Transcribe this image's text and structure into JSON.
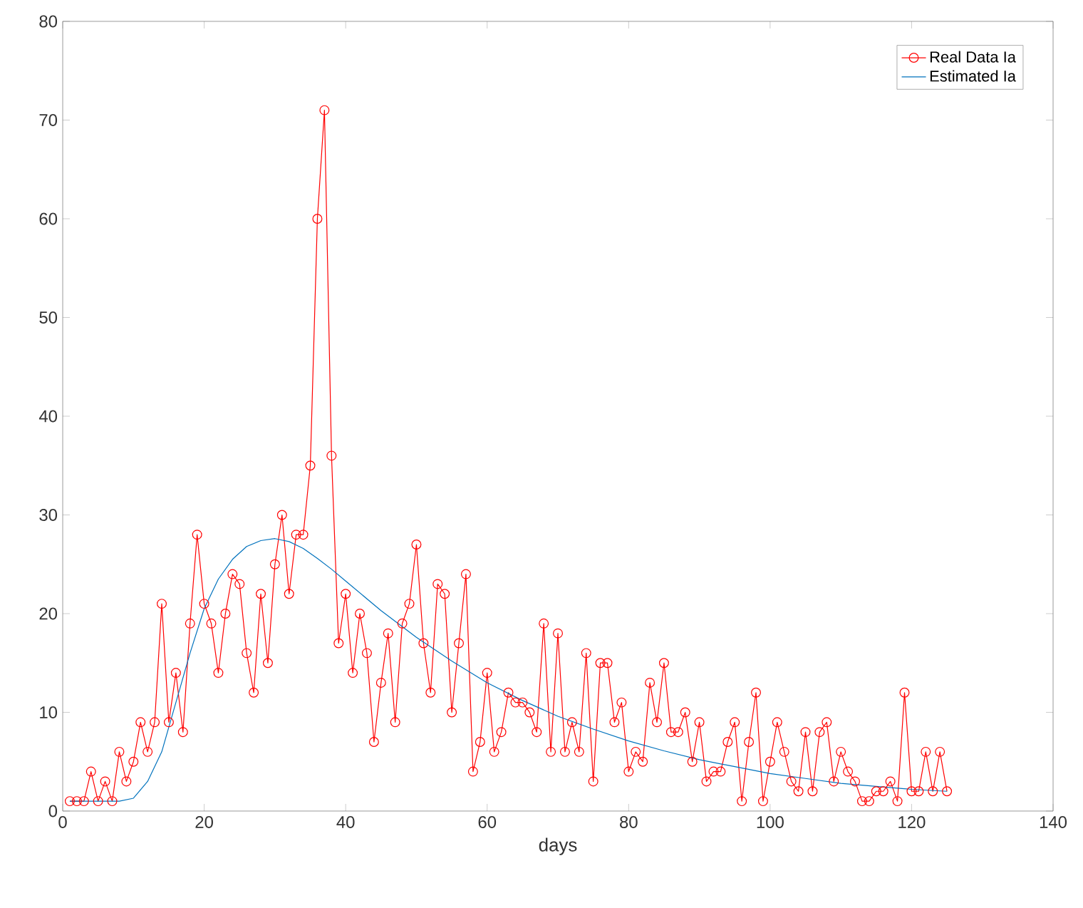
{
  "chart_data": {
    "type": "line",
    "xlabel": "days",
    "xlim": [
      0,
      140
    ],
    "ylim": [
      0,
      80
    ],
    "xticks": [
      0,
      20,
      40,
      60,
      80,
      100,
      120,
      140
    ],
    "yticks": [
      0,
      10,
      20,
      30,
      40,
      50,
      60,
      70,
      80
    ],
    "grid": false,
    "legend": "top right",
    "series": [
      {
        "name": "Real Data Ia",
        "color": "#ff0000",
        "marker": "circle",
        "x": [
          1,
          2,
          3,
          4,
          5,
          6,
          7,
          8,
          9,
          10,
          11,
          12,
          13,
          14,
          15,
          16,
          17,
          18,
          19,
          20,
          21,
          22,
          23,
          24,
          25,
          26,
          27,
          28,
          29,
          30,
          31,
          32,
          33,
          34,
          35,
          36,
          37,
          38,
          39,
          40,
          41,
          42,
          43,
          44,
          45,
          46,
          47,
          48,
          49,
          50,
          51,
          52,
          53,
          54,
          55,
          56,
          57,
          58,
          59,
          60,
          61,
          62,
          63,
          64,
          65,
          66,
          67,
          68,
          69,
          70,
          71,
          72,
          73,
          74,
          75,
          76,
          77,
          78,
          79,
          80,
          81,
          82,
          83,
          84,
          85,
          86,
          87,
          88,
          89,
          90,
          91,
          92,
          93,
          94,
          95,
          96,
          97,
          98,
          99,
          100,
          101,
          102,
          103,
          104,
          105,
          106,
          107,
          108,
          109,
          110,
          111,
          112,
          113,
          114,
          115,
          116,
          117,
          118,
          119,
          120,
          121,
          122,
          123,
          124,
          125
        ],
        "values": [
          1,
          1,
          1,
          4,
          1,
          3,
          1,
          6,
          3,
          5,
          9,
          6,
          9,
          21,
          9,
          14,
          8,
          19,
          28,
          21,
          19,
          14,
          20,
          24,
          23,
          16,
          12,
          22,
          15,
          25,
          30,
          22,
          28,
          28,
          35,
          60,
          71,
          36,
          17,
          22,
          14,
          20,
          16,
          7,
          13,
          18,
          9,
          19,
          21,
          27,
          17,
          12,
          23,
          22,
          10,
          17,
          24,
          4,
          7,
          14,
          6,
          8,
          12,
          11,
          11,
          10,
          8,
          19,
          6,
          18,
          6,
          9,
          6,
          16,
          3,
          15,
          15,
          9,
          11,
          4,
          6,
          5,
          13,
          9,
          15,
          8,
          8,
          10,
          5,
          9,
          3,
          4,
          4,
          7,
          9,
          1,
          7,
          12,
          1,
          5,
          9,
          6,
          3,
          2,
          8,
          2,
          8,
          9,
          3,
          6,
          4,
          3,
          1,
          1,
          2,
          2,
          3,
          1,
          12,
          2,
          2,
          6,
          2,
          6,
          2
        ]
      },
      {
        "name": "Estimated Ia",
        "color": "#0072bd",
        "marker": "none",
        "x": [
          1,
          5,
          8,
          10,
          12,
          14,
          16,
          18,
          20,
          22,
          24,
          26,
          28,
          30,
          32,
          34,
          36,
          38,
          40,
          45,
          50,
          55,
          60,
          65,
          70,
          75,
          80,
          85,
          90,
          95,
          100,
          105,
          110,
          115,
          120,
          125
        ],
        "values": [
          1,
          1,
          1,
          1.3,
          3,
          6,
          11,
          16,
          20.5,
          23.5,
          25.5,
          26.8,
          27.4,
          27.6,
          27.3,
          26.6,
          25.6,
          24.5,
          23.3,
          20.3,
          17.6,
          15.2,
          13,
          11.2,
          9.6,
          8.3,
          7.1,
          6.1,
          5.2,
          4.5,
          3.8,
          3.3,
          2.8,
          2.5,
          2.2,
          2.0
        ]
      }
    ]
  }
}
